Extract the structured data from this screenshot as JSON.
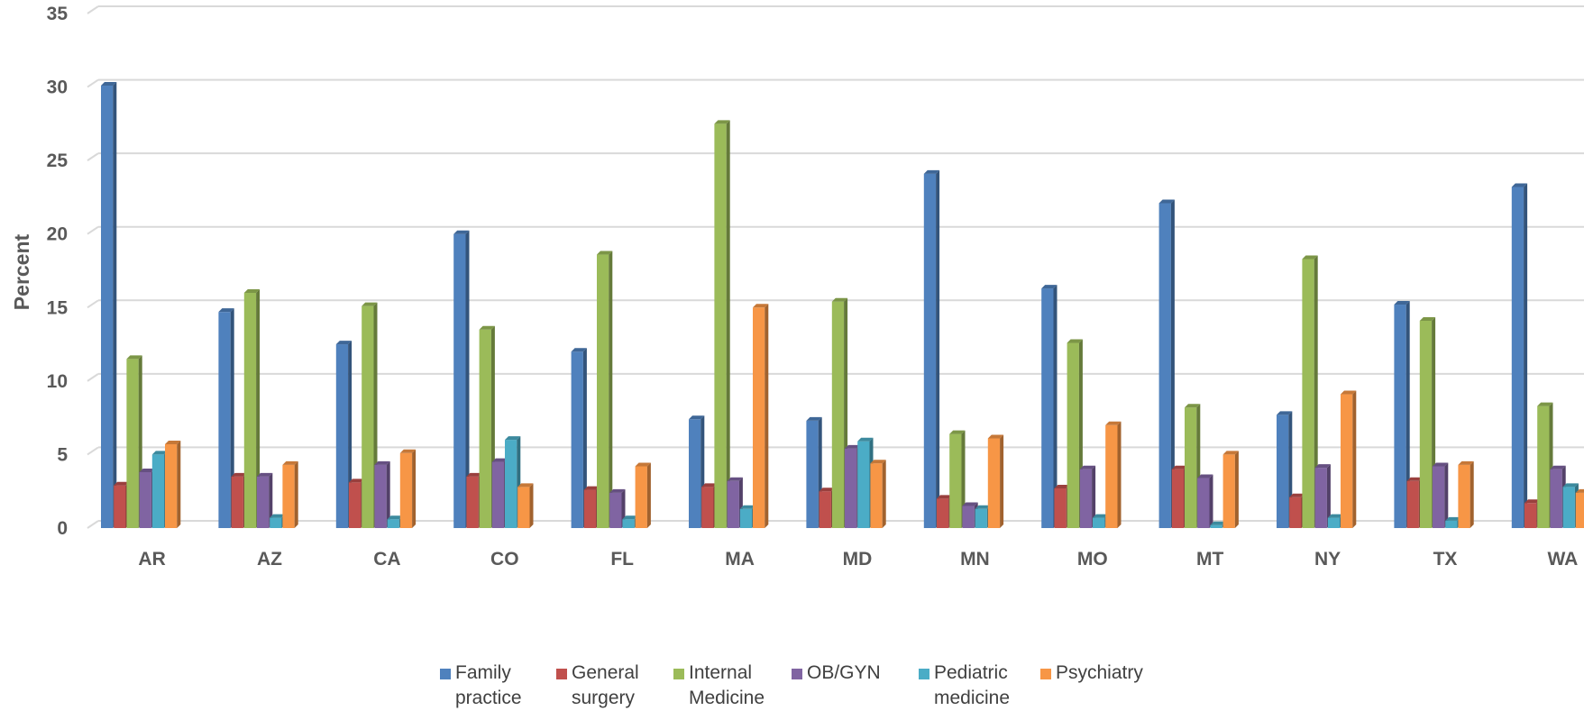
{
  "chart_data": {
    "type": "bar",
    "title": "",
    "xlabel": "",
    "ylabel": "Percent",
    "ylim": [
      0,
      35
    ],
    "yticks": [
      0,
      5,
      10,
      15,
      20,
      25,
      30,
      35
    ],
    "grid": true,
    "legend_position": "bottom",
    "categories": [
      "AR",
      "AZ",
      "CA",
      "CO",
      "FL",
      "MA",
      "MD",
      "MN",
      "MO",
      "MT",
      "NY",
      "TX",
      "WA"
    ],
    "series": [
      {
        "name": "Family practice",
        "legend_lines": [
          "Family",
          "practice"
        ],
        "color": "#4F81BD",
        "values": [
          30.1,
          14.7,
          12.5,
          20.0,
          12.0,
          7.4,
          7.3,
          24.1,
          16.3,
          22.1,
          7.7,
          15.2,
          23.2
        ]
      },
      {
        "name": "General surgery",
        "legend_lines": [
          "General",
          "surgery"
        ],
        "color": "#C0504D",
        "values": [
          2.9,
          3.5,
          3.1,
          3.5,
          2.6,
          2.8,
          2.5,
          2.0,
          2.7,
          4.0,
          2.1,
          3.2,
          1.7
        ]
      },
      {
        "name": "Internal Medicine",
        "legend_lines": [
          "Internal",
          "Medicine"
        ],
        "color": "#9BBB59",
        "values": [
          11.5,
          16.0,
          15.1,
          13.5,
          18.6,
          27.5,
          15.4,
          6.4,
          12.6,
          8.2,
          18.3,
          14.1,
          8.3
        ]
      },
      {
        "name": "OB/GYN",
        "legend_lines": [
          "OB/GYN"
        ],
        "color": "#8064A2",
        "values": [
          3.8,
          3.5,
          4.3,
          4.5,
          2.4,
          3.2,
          5.4,
          1.5,
          4.0,
          3.4,
          4.1,
          4.2,
          4.0
        ]
      },
      {
        "name": "Pediatric medicine",
        "legend_lines": [
          "Pediatric",
          "medicine"
        ],
        "color": "#4BACC6",
        "values": [
          5.0,
          0.7,
          0.6,
          6.0,
          0.6,
          1.3,
          5.9,
          1.3,
          0.7,
          0.2,
          0.7,
          0.5,
          2.8
        ]
      },
      {
        "name": "Psychiatry",
        "legend_lines": [
          "Psychiatry"
        ],
        "color": "#F79646",
        "values": [
          5.7,
          4.3,
          5.1,
          2.8,
          4.2,
          15.0,
          4.4,
          6.1,
          7.0,
          5.0,
          9.1,
          4.3,
          2.4
        ]
      }
    ]
  }
}
